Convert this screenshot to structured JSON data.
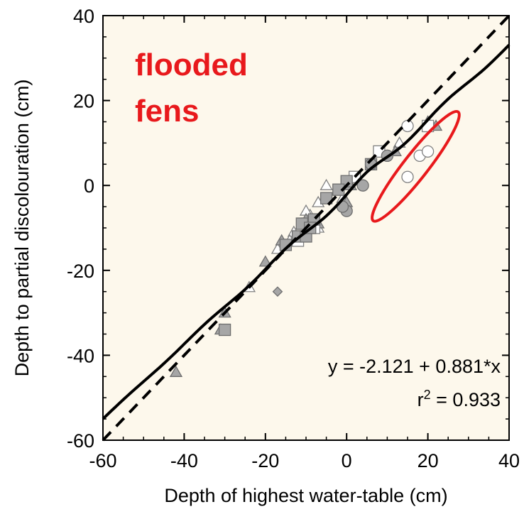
{
  "chart_data": {
    "type": "scatter",
    "xlabel": "Depth of highest water-table (cm)",
    "ylabel": "Depth to partial discolouration (cm)",
    "xlim": [
      -60,
      40
    ],
    "ylim": [
      -60,
      40
    ],
    "xticks": [
      "-60",
      "-40",
      "-20",
      "0",
      "20",
      "40"
    ],
    "yticks": [
      "-60",
      "-40",
      "-20",
      "0",
      "20",
      "40"
    ],
    "x_tick_values": [
      -60,
      -40,
      -20,
      0,
      20,
      40
    ],
    "y_tick_values": [
      -60,
      -40,
      -20,
      0,
      20,
      40
    ],
    "grid": false,
    "plot_background": "#fdf8ec",
    "annotation": {
      "line1": "flooded",
      "line2": "fens",
      "color": "#e8191c"
    },
    "regression": {
      "equation": "y = -2.121 + 0.881*x",
      "r2_prefix": "r",
      "r2_sup": "2",
      "r2_suffix": " = 0.933",
      "intercept": -2.121,
      "slope": 0.881
    },
    "identity_line": {
      "style": "dashed",
      "slope": 1,
      "intercept": 0
    },
    "flooded_region": {
      "cx": 17,
      "cy": 4.5,
      "rx": 17,
      "ry": 3.0,
      "angle_deg": 52,
      "color": "#e8191c"
    },
    "series": [
      {
        "marker": "triangle-open",
        "points": [
          [
            -5,
            0
          ],
          [
            -7,
            -4
          ],
          [
            -9,
            -7
          ],
          [
            -10,
            -6
          ],
          [
            -11,
            -9
          ],
          [
            -13,
            -11
          ],
          [
            -17,
            -15
          ],
          [
            -24,
            -24
          ],
          [
            -1,
            -3
          ],
          [
            -7,
            -10
          ],
          [
            -14,
            -13
          ],
          [
            13,
            10
          ]
        ]
      },
      {
        "marker": "triangle-filled",
        "points": [
          [
            -42,
            -44
          ],
          [
            -31,
            -34
          ],
          [
            -30,
            -30
          ],
          [
            -20,
            -18
          ],
          [
            -16,
            -13
          ],
          [
            -7,
            -9
          ],
          [
            1,
            0
          ],
          [
            12,
            8
          ],
          [
            20,
            15
          ],
          [
            22,
            14
          ],
          [
            0,
            -4
          ],
          [
            -10,
            -8
          ]
        ]
      },
      {
        "marker": "square-open",
        "points": [
          [
            8,
            8
          ],
          [
            20,
            14
          ],
          [
            -12,
            -13
          ],
          [
            -8,
            -10
          ],
          [
            2,
            2
          ]
        ]
      },
      {
        "marker": "square-filled",
        "points": [
          [
            -30,
            -34
          ],
          [
            -15,
            -14
          ],
          [
            -12,
            -12
          ],
          [
            -10,
            -12
          ],
          [
            -11,
            -9
          ],
          [
            -8,
            -8
          ],
          [
            -5,
            -3
          ],
          [
            0,
            1
          ],
          [
            6,
            5
          ],
          [
            -9,
            -10
          ],
          [
            -2,
            -1
          ]
        ]
      },
      {
        "marker": "circle-open",
        "points": [
          [
            15,
            14
          ],
          [
            18,
            7
          ],
          [
            20,
            8
          ],
          [
            15,
            2
          ],
          [
            10,
            7
          ]
        ]
      },
      {
        "marker": "circle-filled",
        "points": [
          [
            6,
            5
          ],
          [
            0,
            -6
          ],
          [
            4,
            0
          ],
          [
            10,
            7
          ],
          [
            -1,
            -5
          ]
        ]
      },
      {
        "marker": "diamond-filled",
        "points": [
          [
            -17,
            -25
          ]
        ]
      }
    ]
  }
}
